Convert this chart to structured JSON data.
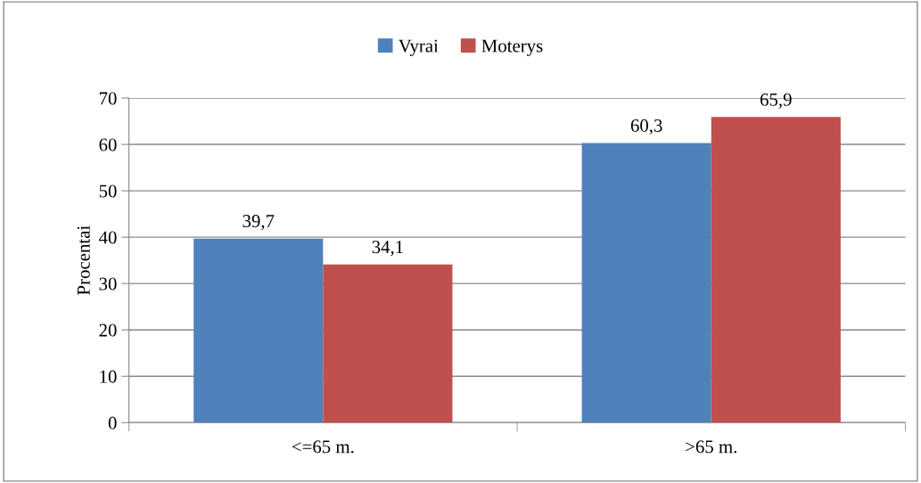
{
  "chart_data": {
    "type": "bar",
    "ylabel": "Procentai",
    "categories": [
      "<=65 m.",
      ">65 m."
    ],
    "series": [
      {
        "name": "Vyrai",
        "color": "#4f81bd",
        "values": [
          39.7,
          60.3
        ],
        "value_labels": [
          "39,7",
          "60,3"
        ]
      },
      {
        "name": "Moterys",
        "color": "#c0504d",
        "values": [
          34.1,
          65.9
        ],
        "value_labels": [
          "34,1",
          "65,9"
        ]
      }
    ],
    "ylim": [
      0,
      70
    ],
    "yticks": [
      0,
      10,
      20,
      30,
      40,
      50,
      60,
      70
    ],
    "grid": "y",
    "legend": "top"
  }
}
